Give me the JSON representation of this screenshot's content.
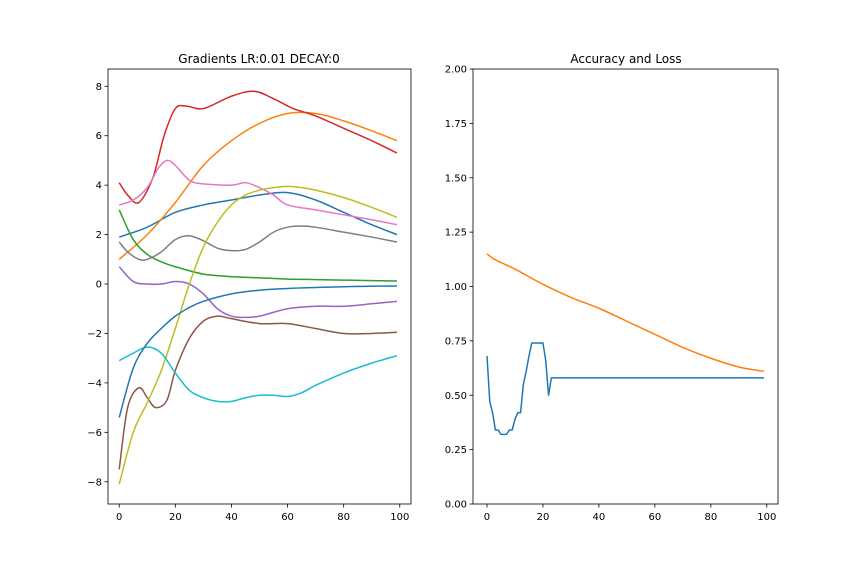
{
  "chart_data": [
    {
      "type": "line",
      "title": "Gradients LR:0.01 DECAY:0",
      "xlabel": "",
      "ylabel": "",
      "xlim": [
        -4,
        104
      ],
      "ylim": [
        -8.9,
        8.7
      ],
      "xticks": [
        0,
        20,
        40,
        60,
        80,
        100
      ],
      "yticks": [
        -8,
        -6,
        -4,
        -2,
        0,
        2,
        4,
        6,
        8
      ],
      "grid": false,
      "series": [
        {
          "color": "#1f77b4",
          "x": [
            0,
            10,
            20,
            30,
            40,
            50,
            60,
            70,
            80,
            90,
            99
          ],
          "y": [
            1.9,
            2.3,
            2.9,
            3.2,
            3.4,
            3.6,
            3.7,
            3.4,
            2.9,
            2.4,
            2.0
          ]
        },
        {
          "color": "#ff7f0e",
          "x": [
            0,
            10,
            20,
            30,
            40,
            50,
            60,
            70,
            80,
            90,
            99
          ],
          "y": [
            1.0,
            2.0,
            3.3,
            4.8,
            5.8,
            6.5,
            6.9,
            6.9,
            6.6,
            6.2,
            5.8
          ]
        },
        {
          "color": "#2ca02c",
          "x": [
            0,
            5,
            10,
            15,
            20,
            30,
            40,
            50,
            60,
            70,
            80,
            90,
            99
          ],
          "y": [
            3.0,
            1.8,
            1.2,
            0.9,
            0.7,
            0.4,
            0.3,
            0.25,
            0.2,
            0.18,
            0.16,
            0.14,
            0.12
          ]
        },
        {
          "color": "#d62728",
          "x": [
            0,
            3,
            7,
            12,
            16,
            20,
            24,
            30,
            40,
            48,
            55,
            62,
            70,
            80,
            90,
            99
          ],
          "y": [
            4.1,
            3.6,
            3.3,
            4.3,
            6.0,
            7.1,
            7.2,
            7.1,
            7.6,
            7.8,
            7.5,
            7.1,
            6.8,
            6.3,
            5.8,
            5.3
          ]
        },
        {
          "color": "#9467bd",
          "x": [
            0,
            5,
            10,
            15,
            20,
            25,
            30,
            35,
            40,
            45,
            50,
            60,
            70,
            80,
            90,
            99
          ],
          "y": [
            0.7,
            0.1,
            0.0,
            0.0,
            0.1,
            0.0,
            -0.4,
            -1.0,
            -1.3,
            -1.35,
            -1.3,
            -1.0,
            -0.9,
            -0.9,
            -0.8,
            -0.7
          ]
        },
        {
          "color": "#8c564b",
          "x": [
            0,
            3,
            7,
            10,
            13,
            17,
            20,
            25,
            30,
            35,
            40,
            50,
            60,
            70,
            80,
            90,
            99
          ],
          "y": [
            -7.5,
            -5.0,
            -4.2,
            -4.6,
            -5.0,
            -4.7,
            -3.5,
            -2.2,
            -1.5,
            -1.3,
            -1.4,
            -1.6,
            -1.6,
            -1.8,
            -2.0,
            -2.0,
            -1.95
          ]
        },
        {
          "color": "#e377c2",
          "x": [
            0,
            5,
            10,
            14,
            17,
            20,
            25,
            30,
            40,
            45,
            50,
            55,
            60,
            70,
            80,
            90,
            99
          ],
          "y": [
            3.2,
            3.4,
            3.9,
            4.7,
            5.0,
            4.8,
            4.2,
            4.05,
            4.0,
            4.1,
            3.9,
            3.6,
            3.2,
            3.0,
            2.8,
            2.6,
            2.4
          ]
        },
        {
          "color": "#7f7f7f",
          "x": [
            0,
            3,
            7,
            10,
            15,
            20,
            25,
            30,
            35,
            40,
            45,
            50,
            55,
            60,
            65,
            70,
            80,
            90,
            99
          ],
          "y": [
            1.7,
            1.3,
            1.0,
            1.0,
            1.3,
            1.8,
            1.95,
            1.75,
            1.45,
            1.35,
            1.4,
            1.7,
            2.1,
            2.3,
            2.35,
            2.3,
            2.1,
            1.9,
            1.7
          ]
        },
        {
          "color": "#bcbd22",
          "x": [
            0,
            5,
            10,
            15,
            20,
            25,
            30,
            35,
            40,
            45,
            50,
            55,
            60,
            65,
            70,
            80,
            90,
            99
          ],
          "y": [
            -8.1,
            -6.0,
            -4.8,
            -3.5,
            -1.8,
            0.0,
            1.5,
            2.5,
            3.2,
            3.6,
            3.8,
            3.9,
            3.95,
            3.9,
            3.8,
            3.5,
            3.1,
            2.7
          ]
        },
        {
          "color": "#17becf",
          "x": [
            0,
            5,
            10,
            15,
            20,
            25,
            30,
            35,
            40,
            45,
            50,
            55,
            60,
            65,
            70,
            80,
            90,
            99
          ],
          "y": [
            -3.1,
            -2.8,
            -2.55,
            -2.8,
            -3.6,
            -4.3,
            -4.6,
            -4.75,
            -4.75,
            -4.6,
            -4.5,
            -4.5,
            -4.55,
            -4.4,
            -4.1,
            -3.6,
            -3.2,
            -2.9
          ]
        },
        {
          "color": "#1f77b4",
          "x": [
            0,
            5,
            10,
            15,
            20,
            25,
            30,
            40,
            50,
            60,
            70,
            80,
            90,
            99
          ],
          "y": [
            -5.4,
            -3.4,
            -2.4,
            -1.8,
            -1.3,
            -0.95,
            -0.7,
            -0.4,
            -0.25,
            -0.18,
            -0.14,
            -0.11,
            -0.09,
            -0.08
          ]
        }
      ]
    },
    {
      "type": "line",
      "title": "Accuracy and Loss",
      "xlabel": "",
      "ylabel": "",
      "xlim": [
        -5,
        104
      ],
      "ylim": [
        0.0,
        2.0
      ],
      "xticks": [
        0,
        20,
        40,
        60,
        80,
        100
      ],
      "yticks": [
        "0.00",
        "0.25",
        "0.50",
        "0.75",
        "1.00",
        "1.25",
        "1.50",
        "1.75",
        "2.00"
      ],
      "grid": false,
      "series": [
        {
          "color": "#1f77b4",
          "x": [
            0,
            1,
            2,
            3,
            4,
            5,
            6,
            7,
            8,
            9,
            10,
            11,
            12,
            13,
            14,
            15,
            16,
            17,
            18,
            19,
            20,
            21,
            22,
            23,
            24,
            25,
            30,
            40,
            50,
            60,
            70,
            80,
            90,
            99
          ],
          "y": [
            0.68,
            0.47,
            0.42,
            0.34,
            0.34,
            0.32,
            0.32,
            0.32,
            0.34,
            0.34,
            0.39,
            0.42,
            0.42,
            0.55,
            0.61,
            0.68,
            0.74,
            0.74,
            0.74,
            0.74,
            0.74,
            0.66,
            0.5,
            0.58,
            0.58,
            0.58,
            0.58,
            0.58,
            0.58,
            0.58,
            0.58,
            0.58,
            0.58,
            0.58
          ]
        },
        {
          "color": "#ff7f0e",
          "x": [
            0,
            2,
            5,
            10,
            20,
            30,
            40,
            50,
            60,
            70,
            80,
            90,
            99
          ],
          "y": [
            1.15,
            1.13,
            1.11,
            1.08,
            1.01,
            0.95,
            0.9,
            0.84,
            0.78,
            0.72,
            0.67,
            0.63,
            0.61
          ]
        }
      ]
    }
  ]
}
